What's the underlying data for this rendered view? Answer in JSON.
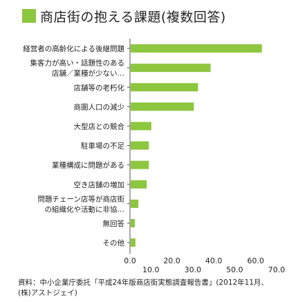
{
  "title": "商店街の抱える課題(複数回答)",
  "colors": {
    "accent": "#8dc63f",
    "axis": "#555555",
    "text": "#222222"
  },
  "chart_data": {
    "type": "bar",
    "orientation": "horizontal",
    "title": "商店街の抱える課題(複数回答)",
    "categories": [
      [
        "経営者の高齢化による後継問題"
      ],
      [
        "集客力が高い・話題性のある",
        "店舗／業種が少ない…"
      ],
      [
        "店舗等の老朽化"
      ],
      [
        "商圏人口の減少"
      ],
      [
        "大型店との競合"
      ],
      [
        "駐車場の不足"
      ],
      [
        "業種構成に問題がある"
      ],
      [
        "空き店舗の増加"
      ],
      [
        "問題チェーン店等が商店街",
        "の組織化や活動に非協…"
      ],
      [
        "無回答"
      ],
      [
        "その他"
      ]
    ],
    "values": [
      63.0,
      38.5,
      32.5,
      30.5,
      10.2,
      9.0,
      9.0,
      8.0,
      4.0,
      2.3,
      2.6
    ],
    "xlim": [
      0,
      70
    ],
    "xticks": [
      "0.0",
      "10.0",
      "20.0",
      "30.0",
      "40.0",
      "50.0",
      "60.0",
      "70.0"
    ],
    "grid": false,
    "legend": "none"
  },
  "source": {
    "line1": "資料：中小企業庁委託「平成24年版商店街実態調査報告書」(2012年11月、",
    "line2": "(株)アストジェイ)"
  }
}
